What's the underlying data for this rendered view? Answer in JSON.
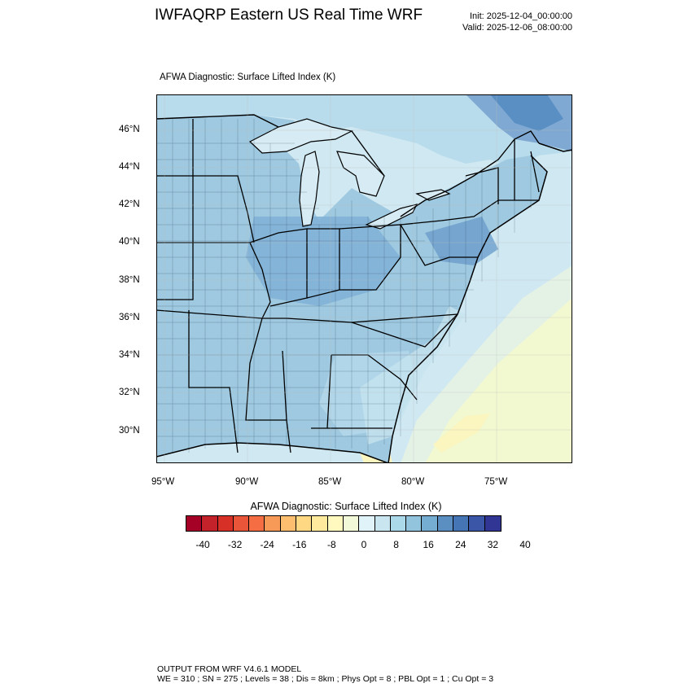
{
  "header": {
    "title": "IWFAQRP Eastern US Real Time WRF",
    "init": "Init: 2025-12-04_00:00:00",
    "valid": "Valid: 2025-12-06_08:00:00"
  },
  "map": {
    "subtitle": "AFWA Diagnostic: Surface Lifted Index   (K)",
    "lat_labels": [
      "46°N",
      "44°N",
      "42°N",
      "40°N",
      "38°N",
      "36°N",
      "34°N",
      "32°N",
      "30°N"
    ],
    "lon_labels": [
      "95°W",
      "90°W",
      "85°W",
      "80°W",
      "75°W"
    ],
    "colors": {
      "land_base": "#9ec9e0",
      "water": "#cfe8f2",
      "ocean_warm": "#f2f8cf",
      "ocean_yellow": "#fbf5c0",
      "ne_dark": "#5a8fc4"
    }
  },
  "colorbar": {
    "title": "AFWA Diagnostic: Surface Lifted Index  (K)",
    "colors": [
      "#a50026",
      "#c4222b",
      "#d73027",
      "#e95538",
      "#f46d43",
      "#f89a57",
      "#fdbe6f",
      "#fed883",
      "#fee99d",
      "#fff9bf",
      "#f1f9d8",
      "#e0f3f8",
      "#c9e6f0",
      "#abd9e9",
      "#93c4dd",
      "#74add1",
      "#5b8fc2",
      "#4575b4",
      "#3b56a6",
      "#313695"
    ],
    "labels": [
      "-40",
      "-32",
      "-24",
      "-16",
      "-8",
      "0",
      "8",
      "16",
      "24",
      "32",
      "40"
    ]
  },
  "footer": {
    "line1": "OUTPUT FROM WRF V4.6.1 MODEL",
    "line2": "WE = 310 ; SN = 275 ; Levels = 38 ; Dis = 8km ; Phys Opt = 8 ; PBL Opt = 1 ; Cu Opt = 3"
  }
}
